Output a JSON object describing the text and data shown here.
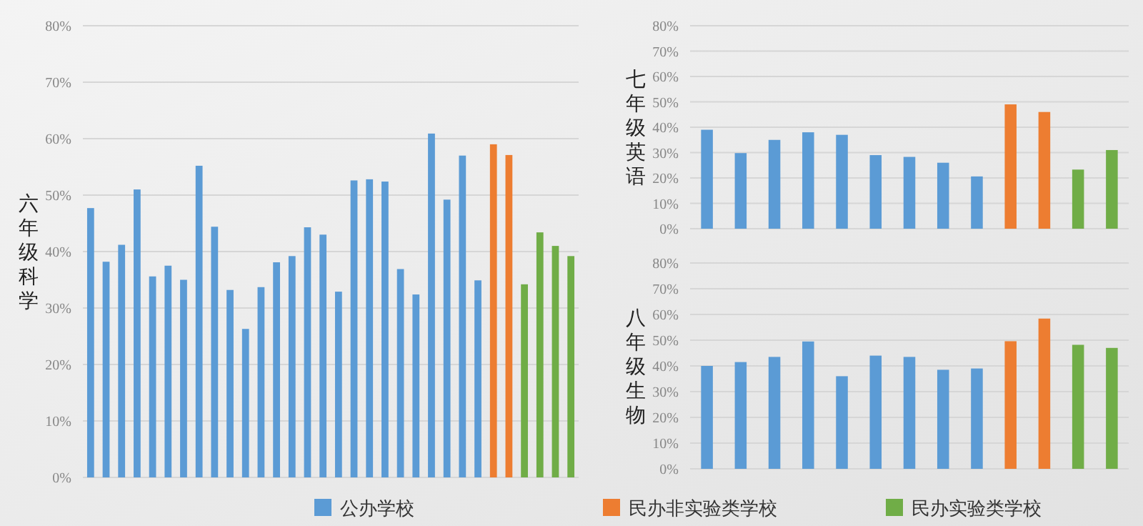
{
  "chart_data": [
    {
      "type": "bar",
      "ylabel": "六年级科学",
      "categories": [
        null,
        null,
        null,
        null,
        null,
        null,
        null,
        null,
        null,
        null,
        null,
        null,
        null,
        null,
        null,
        null,
        null,
        null,
        null,
        null,
        null,
        null,
        null,
        null,
        null,
        null,
        null,
        null,
        null,
        null,
        null,
        null
      ],
      "series": [
        {
          "name": "公办学校",
          "color": "#5b9bd5",
          "values": [
            47.7,
            38.2,
            41.2,
            51,
            35.6,
            37.5,
            35,
            55.2,
            44.4,
            33.2,
            26.3,
            33.7,
            38.1,
            39.2,
            44.3,
            43,
            32.9,
            52.6,
            52.8,
            52.4,
            36.9,
            32.4,
            60.9,
            49.2,
            57,
            34.9,
            null,
            null,
            null,
            null,
            null,
            null
          ]
        },
        {
          "name": "民办非实验类学校",
          "color": "#ed7d31",
          "values": [
            null,
            null,
            null,
            null,
            null,
            null,
            null,
            null,
            null,
            null,
            null,
            null,
            null,
            null,
            null,
            null,
            null,
            null,
            null,
            null,
            null,
            null,
            null,
            null,
            null,
            null,
            59,
            57.1,
            null,
            null,
            null,
            null
          ]
        },
        {
          "name": "民办实验类学校",
          "color": "#70ad47",
          "values": [
            null,
            null,
            null,
            null,
            null,
            null,
            null,
            null,
            null,
            null,
            null,
            null,
            null,
            null,
            null,
            null,
            null,
            null,
            null,
            null,
            null,
            null,
            null,
            null,
            null,
            null,
            null,
            null,
            34.2,
            43.4,
            41,
            39.2
          ]
        }
      ],
      "ylim": [
        0,
        80
      ],
      "yticks": [
        {
          "value": 0,
          "label": "0%"
        },
        {
          "value": 10,
          "label": "10%"
        },
        {
          "value": 20,
          "label": "20%"
        },
        {
          "value": 30,
          "label": "30%"
        },
        {
          "value": 40,
          "label": "40%"
        },
        {
          "value": 50,
          "label": "50%"
        },
        {
          "value": 60,
          "label": "60%"
        },
        {
          "value": 70,
          "label": "70%"
        },
        {
          "value": 80,
          "label": "80%"
        }
      ],
      "grid": "y",
      "legend": "bottom"
    },
    {
      "type": "bar",
      "ylabel": "七年级英语",
      "categories": [
        null,
        null,
        null,
        null,
        null,
        null,
        null,
        null,
        null,
        null,
        null,
        null,
        null
      ],
      "series": [
        {
          "color": "#5b9bd5",
          "values": [
            39,
            29.8,
            35,
            38,
            37,
            29,
            28.3,
            26,
            20.6,
            null,
            null,
            null,
            null
          ]
        },
        {
          "color": "#ed7d31",
          "values": [
            null,
            null,
            null,
            null,
            null,
            null,
            null,
            null,
            null,
            49,
            46,
            null,
            null
          ]
        },
        {
          "color": "#70ad47",
          "values": [
            null,
            null,
            null,
            null,
            null,
            null,
            null,
            null,
            null,
            null,
            null,
            23.3,
            31
          ]
        }
      ],
      "ylim": [
        0,
        80
      ],
      "yticks": [
        {
          "value": 0,
          "label": "0%"
        },
        {
          "value": 10,
          "label": "10%"
        },
        {
          "value": 20,
          "label": "20%"
        },
        {
          "value": 30,
          "label": "30%"
        },
        {
          "value": 40,
          "label": "40%"
        },
        {
          "value": 50,
          "label": "50%"
        },
        {
          "value": 60,
          "label": "60%"
        },
        {
          "value": 70,
          "label": "70%"
        },
        {
          "value": 80,
          "label": "80%"
        }
      ],
      "grid": "y"
    },
    {
      "type": "bar",
      "ylabel": "八年级生物",
      "categories": [
        null,
        null,
        null,
        null,
        null,
        null,
        null,
        null,
        null,
        null,
        null,
        null,
        null
      ],
      "series": [
        {
          "color": "#5b9bd5",
          "values": [
            40,
            41.5,
            43.5,
            49.5,
            36,
            44,
            43.5,
            38.5,
            39,
            null,
            null,
            null,
            null
          ]
        },
        {
          "color": "#ed7d31",
          "values": [
            null,
            null,
            null,
            null,
            null,
            null,
            null,
            null,
            null,
            49.6,
            58.4,
            null,
            null
          ]
        },
        {
          "color": "#70ad47",
          "values": [
            null,
            null,
            null,
            null,
            null,
            null,
            null,
            null,
            null,
            null,
            null,
            48.2,
            47
          ]
        }
      ],
      "ylim": [
        0,
        80
      ],
      "yticks": [
        {
          "value": 0,
          "label": "0%"
        },
        {
          "value": 10,
          "label": "10%"
        },
        {
          "value": 20,
          "label": "20%"
        },
        {
          "value": 30,
          "label": "30%"
        },
        {
          "value": 40,
          "label": "40%"
        },
        {
          "value": 50,
          "label": "50%"
        },
        {
          "value": 60,
          "label": "60%"
        },
        {
          "value": 70,
          "label": "70%"
        },
        {
          "value": 80,
          "label": "80%"
        }
      ],
      "grid": "y"
    }
  ]
}
